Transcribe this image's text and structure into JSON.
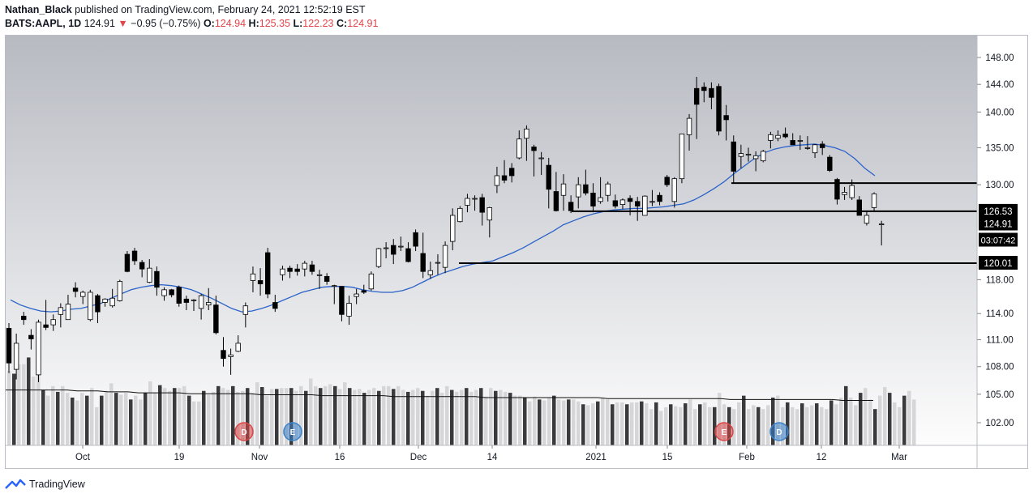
{
  "header": {
    "author": "Nathan_Black",
    "published_text": "published on TradingView.com, February 24, 2021 12:52:19 EST",
    "symbol": "BATS:AAPL, 1D",
    "last": "124.91",
    "arrow": "▼",
    "change": "−0.95 (−0.75%)",
    "o_label": "O:",
    "o_value": "124.94",
    "h_label": "H:",
    "h_value": "125.35",
    "l_label": "L:",
    "l_value": "122.23",
    "c_label": "C:",
    "c_value": "124.91"
  },
  "footer": {
    "brand": "TradingView"
  },
  "colors": {
    "bull_body": "#ffffff",
    "bear_body": "#000000",
    "wick": "#000000",
    "ma": "#2962c9",
    "vol_up": "#d6d6d8",
    "vol_down": "#3a3a3c",
    "bg_top": "#b8bac2",
    "bg_bottom": "#fdfdfd",
    "marker_red": "#d94747",
    "marker_blue": "#3b82c8"
  },
  "chart_data": {
    "type": "candlestick",
    "symbol": "BATS:AAPL",
    "interval": "1D",
    "price_axis": {
      "ticks": [
        "148.00",
        "144.00",
        "140.00",
        "135.00",
        "130.00",
        "126.53",
        "124.91",
        "120.01",
        "118.00",
        "114.00",
        "111.00",
        "108.00",
        "105.00",
        "102.00"
      ],
      "log_scale": true
    },
    "x_labels": [
      "Oct",
      "19",
      "Nov",
      "16",
      "Dec",
      "14",
      "2021",
      "15",
      "Feb",
      "12",
      "Mar"
    ],
    "horizontal_levels": [
      {
        "label": "130.21",
        "price": 130.21
      },
      {
        "label": "126.53",
        "price": 126.53
      },
      {
        "label": "120.01",
        "price": 120.01
      }
    ],
    "last_price_label": "124.91",
    "countdown_label": "03:07:42",
    "moving_average": [
      115.6,
      115.0,
      114.6,
      114.3,
      114.2,
      114.3,
      114.5,
      114.6,
      114.9,
      115.2,
      115.8,
      116.3,
      116.8,
      117.1,
      117.3,
      117.4,
      117.3,
      117.1,
      116.8,
      116.3,
      115.8,
      115.2,
      114.6,
      114.2,
      114.3,
      114.6,
      115.0,
      115.5,
      116.0,
      116.5,
      116.8,
      117.1,
      117.2,
      117.2,
      117.1,
      116.8,
      116.6,
      116.5,
      116.5,
      116.7,
      117.1,
      117.7,
      118.3,
      118.8,
      119.2,
      119.6,
      119.9,
      120.1,
      120.3,
      120.8,
      121.3,
      121.9,
      122.6,
      123.3,
      124.0,
      124.8,
      125.3,
      125.8,
      126.2,
      126.5,
      126.7,
      126.8,
      126.9,
      126.9,
      127.0,
      127.1,
      127.3,
      127.5,
      128.0,
      128.7,
      129.5,
      130.4,
      131.5,
      132.5,
      133.5,
      134.3,
      134.8,
      135.1,
      135.3,
      135.4,
      135.5,
      135.3,
      135.0,
      134.5,
      133.5,
      132.2,
      131.2
    ],
    "candles": [
      [
        112.3,
        108.4,
        112.9,
        107.3
      ],
      [
        107.7,
        110.6,
        111.7,
        106.6
      ],
      [
        113.7,
        113.3,
        114.2,
        112.7
      ],
      [
        111.5,
        111.1,
        112.2,
        109.9
      ],
      [
        107.1,
        113.0,
        113.3,
        106.3
      ],
      [
        112.7,
        112.4,
        115.6,
        112.1
      ],
      [
        112.7,
        113.3,
        113.9,
        112.0
      ],
      [
        113.9,
        114.7,
        115.2,
        112.4
      ],
      [
        113.3,
        115.1,
        116.2,
        113.3
      ],
      [
        117.0,
        116.6,
        117.7,
        115.9
      ],
      [
        116.0,
        116.5,
        116.7,
        115.1
      ],
      [
        113.3,
        116.5,
        116.8,
        113.1
      ],
      [
        116.1,
        114.2,
        116.3,
        112.9
      ],
      [
        115.3,
        115.7,
        115.8,
        114.8
      ],
      [
        114.9,
        115.8,
        116.9,
        114.7
      ],
      [
        115.5,
        117.8,
        118.0,
        115.4
      ],
      [
        121.1,
        119.0,
        121.5,
        118.9
      ],
      [
        121.5,
        120.3,
        121.9,
        119.8
      ],
      [
        120.1,
        119.3,
        120.4,
        118.3
      ],
      [
        117.7,
        119.4,
        120.5,
        117.6
      ],
      [
        119.0,
        117.1,
        119.6,
        116.1
      ],
      [
        116.1,
        116.8,
        117.1,
        115.5
      ],
      [
        116.8,
        116.2,
        116.9,
        115.9
      ],
      [
        117.1,
        115.2,
        117.3,
        114.8
      ],
      [
        115.7,
        115.3,
        116.1,
        114.4
      ],
      [
        115.5,
        115.6,
        115.7,
        114.3
      ],
      [
        114.6,
        116.1,
        116.3,
        113.3
      ],
      [
        115.0,
        115.3,
        117.0,
        114.4
      ],
      [
        115.0,
        111.8,
        116.1,
        111.6
      ],
      [
        109.8,
        108.9,
        111.3,
        108.0
      ],
      [
        109.1,
        109.3,
        110.0,
        107.1
      ],
      [
        109.7,
        110.6,
        111.5,
        109.6
      ],
      [
        113.9,
        114.9,
        115.3,
        112.4
      ],
      [
        117.9,
        118.7,
        119.6,
        116.5
      ],
      [
        117.9,
        117.5,
        119.4,
        116.1
      ],
      [
        121.3,
        116.3,
        121.9,
        115.8
      ],
      [
        115.3,
        114.6,
        116.2,
        114.2
      ],
      [
        118.6,
        119.3,
        119.7,
        117.9
      ],
      [
        119.4,
        119.0,
        119.7,
        118.2
      ],
      [
        119.3,
        119.0,
        119.9,
        118.5
      ],
      [
        119.3,
        120.0,
        120.3,
        118.4
      ],
      [
        119.8,
        119.0,
        120.3,
        118.6
      ],
      [
        118.5,
        118.6,
        119.2,
        116.9
      ],
      [
        118.4,
        117.8,
        118.8,
        117.4
      ],
      [
        117.3,
        117.3,
        117.4,
        115.1
      ],
      [
        117.2,
        113.9,
        117.2,
        113.1
      ],
      [
        113.7,
        115.2,
        116.1,
        112.7
      ],
      [
        116.0,
        116.3,
        116.9,
        115.1
      ],
      [
        116.7,
        116.5,
        117.4,
        116.3
      ],
      [
        116.9,
        118.7,
        119.0,
        116.7
      ],
      [
        119.6,
        121.8,
        121.9,
        119.4
      ],
      [
        121.8,
        121.9,
        122.6,
        120.6
      ],
      [
        122.2,
        121.1,
        123.0,
        119.9
      ],
      [
        122.1,
        122.1,
        123.3,
        121.5
      ],
      [
        121.8,
        120.2,
        122.6,
        120.1
      ],
      [
        123.8,
        122.1,
        124.2,
        121.5
      ],
      [
        121.2,
        119.0,
        123.8,
        118.2
      ],
      [
        118.6,
        119.1,
        120.2,
        118.1
      ],
      [
        120.0,
        120.1,
        121.1,
        118.6
      ],
      [
        119.5,
        122.2,
        122.7,
        118.8
      ],
      [
        122.7,
        126.0,
        126.9,
        121.6
      ],
      [
        125.2,
        126.9,
        127.2,
        125.1
      ],
      [
        127.3,
        128.2,
        128.8,
        126.4
      ],
      [
        128.2,
        128.2,
        128.6,
        126.6
      ],
      [
        128.3,
        126.4,
        128.8,
        124.7
      ],
      [
        125.4,
        127.0,
        127.1,
        123.2
      ],
      [
        129.9,
        131.2,
        132.4,
        128.9
      ],
      [
        131.2,
        130.6,
        133.3,
        130.2
      ],
      [
        132.2,
        131.2,
        132.9,
        130.3
      ],
      [
        133.6,
        136.2,
        137.4,
        133.4
      ],
      [
        136.3,
        137.6,
        138.1,
        133.2
      ],
      [
        135.1,
        134.6,
        135.4,
        131.1
      ],
      [
        133.6,
        133.6,
        134.4,
        131.3
      ],
      [
        132.6,
        129.4,
        133.6,
        126.9
      ],
      [
        129.1,
        126.6,
        131.7,
        126.5
      ],
      [
        128.6,
        130.1,
        131.4,
        126.6
      ],
      [
        127.7,
        126.6,
        128.6,
        126.3
      ],
      [
        128.4,
        130.0,
        131.0,
        126.9
      ],
      [
        130.0,
        128.9,
        132.0,
        128.6
      ],
      [
        128.9,
        127.2,
        130.2,
        126.4
      ],
      [
        127.8,
        128.3,
        131.0,
        127.5
      ],
      [
        128.6,
        130.1,
        130.4,
        127.8
      ],
      [
        127.9,
        127.2,
        128.7,
        126.9
      ],
      [
        127.4,
        128.0,
        128.2,
        126.8
      ],
      [
        128.2,
        127.8,
        128.6,
        126.0
      ],
      [
        127.8,
        127.2,
        128.4,
        125.3
      ],
      [
        126.0,
        128.5,
        128.6,
        126.0
      ],
      [
        127.8,
        127.8,
        129.3,
        127.2
      ],
      [
        128.6,
        127.8,
        129.0,
        127.3
      ],
      [
        131.0,
        130.0,
        131.3,
        129.7
      ],
      [
        127.8,
        130.8,
        131.0,
        127.0
      ],
      [
        130.8,
        136.9,
        136.9,
        130.2
      ],
      [
        136.8,
        139.1,
        139.7,
        134.6
      ],
      [
        143.4,
        141.1,
        145.1,
        136.2
      ],
      [
        143.6,
        143.1,
        144.3,
        141.4
      ],
      [
        143.4,
        142.1,
        144.3,
        140.4
      ],
      [
        143.7,
        137.3,
        144.1,
        136.7
      ],
      [
        139.5,
        138.9,
        141.0,
        136.0
      ],
      [
        135.8,
        131.8,
        136.7,
        130.2
      ],
      [
        133.8,
        134.2,
        135.4,
        132.2
      ],
      [
        134.1,
        134.1,
        135.0,
        133.1
      ],
      [
        133.5,
        133.9,
        134.5,
        131.8
      ],
      [
        133.2,
        134.5,
        134.7,
        133.0
      ],
      [
        136.0,
        136.8,
        137.2,
        134.9
      ],
      [
        136.3,
        136.7,
        137.4,
        135.9
      ],
      [
        136.9,
        136.5,
        137.8,
        136.3
      ],
      [
        136.0,
        135.4,
        137.0,
        135.4
      ],
      [
        136.0,
        136.0,
        136.7,
        134.7
      ],
      [
        135.0,
        135.0,
        136.6,
        134.7
      ],
      [
        134.3,
        135.4,
        135.5,
        133.6
      ],
      [
        135.5,
        135.0,
        135.9,
        134.0
      ],
      [
        133.7,
        131.9,
        134.0,
        131.7
      ],
      [
        130.7,
        128.1,
        130.9,
        127.4
      ],
      [
        128.7,
        129.0,
        129.7,
        128.0
      ],
      [
        128.3,
        129.9,
        130.7,
        128.0
      ],
      [
        128.0,
        126.0,
        128.5,
        126.0
      ],
      [
        125.0,
        126.0,
        126.5,
        124.7
      ],
      [
        127.0,
        128.8,
        129.0,
        126.5
      ],
      [
        124.9,
        124.9,
        125.3,
        122.2
      ]
    ],
    "volume": [
      0.78,
      0.75,
      0.85,
      0.85,
      0.92,
      0.72,
      0.74,
      0.58,
      0.52,
      0.62,
      0.56,
      0.62,
      0.55,
      0.5,
      0.47,
      0.55,
      0.52,
      0.6,
      0.4,
      0.52,
      0.57,
      0.65,
      0.55,
      0.53,
      0.55,
      0.48,
      0.52,
      0.48,
      0.55,
      0.67,
      0.55,
      0.63,
      0.6,
      0.57,
      0.6,
      0.6,
      0.62,
      0.52,
      0.46,
      0.46,
      0.57,
      0.53,
      0.56,
      0.62,
      0.6,
      0.58,
      0.62,
      0.56,
      0.57,
      0.6,
      0.55,
      0.66,
      0.61,
      0.52,
      0.59,
      0.59,
      0.6,
      0.6,
      0.6,
      0.57,
      0.62,
      0.57,
      0.7,
      0.62,
      0.6,
      0.62,
      0.64,
      0.62,
      0.59,
      0.66,
      0.6,
      0.58,
      0.59,
      0.55,
      0.58,
      0.6,
      0.57,
      0.62,
      0.62,
      0.59,
      0.62,
      0.58,
      0.56,
      0.58,
      0.6,
      0.57,
      0.52,
      0.57,
      0.6,
      0.55,
      0.62,
      0.58,
      0.56,
      0.58,
      0.6,
      0.56,
      0.58,
      0.6,
      0.51,
      0.6,
      0.57,
      0.58,
      0.56,
      0.55,
      0.52,
      0.52,
      0.5,
      0.46,
      0.51,
      0.48,
      0.47,
      0.5,
      0.52,
      0.48,
      0.47,
      0.48,
      0.48,
      0.46,
      0.43,
      0.42,
      0.44,
      0.46,
      0.5,
      0.48,
      0.43,
      0.45,
      0.45,
      0.43,
      0.45,
      0.45,
      0.46,
      0.44,
      0.38,
      0.45,
      0.36,
      0.4,
      0.43,
      0.41,
      0.4,
      0.44,
      0.48,
      0.38,
      0.43,
      0.45,
      0.4,
      0.4,
      0.55,
      0.43,
      0.4,
      0.38,
      0.45,
      0.52,
      0.38,
      0.42,
      0.4,
      0.38,
      0.42,
      0.5,
      0.52,
      0.4,
      0.45,
      0.4,
      0.38,
      0.44,
      0.4,
      0.42,
      0.44,
      0.4,
      0.38,
      0.47,
      0.43,
      0.5,
      0.62,
      0.5,
      0.42,
      0.55,
      0.6,
      0.48,
      0.38,
      0.52,
      0.61,
      0.55,
      0.45,
      0.4,
      0.52,
      0.57,
      0.48
    ],
    "volume_ma": [
      0.58,
      0.58,
      0.58,
      0.58,
      0.58,
      0.58,
      0.58,
      0.57,
      0.57,
      0.57,
      0.56,
      0.56,
      0.56,
      0.55,
      0.55,
      0.55,
      0.55,
      0.55,
      0.54,
      0.54,
      0.54,
      0.54,
      0.54,
      0.54,
      0.54,
      0.53,
      0.53,
      0.53,
      0.53,
      0.53,
      0.53,
      0.52,
      0.52,
      0.52,
      0.52,
      0.52,
      0.52,
      0.52,
      0.51,
      0.51,
      0.51,
      0.51,
      0.51,
      0.51,
      0.51,
      0.51,
      0.51,
      0.5,
      0.5,
      0.5,
      0.5,
      0.5,
      0.5,
      0.5,
      0.5,
      0.5,
      0.5,
      0.5,
      0.5,
      0.49,
      0.49,
      0.49,
      0.49,
      0.49,
      0.49,
      0.49,
      0.49,
      0.49,
      0.49,
      0.49,
      0.49,
      0.48,
      0.48,
      0.48,
      0.48,
      0.48,
      0.48,
      0.48,
      0.48,
      0.48,
      0.48,
      0.48,
      0.47,
      0.47,
      0.47,
      0.47
    ],
    "volume_markers": [
      {
        "letter": "D",
        "color": "red"
      },
      {
        "letter": "E",
        "color": "blue"
      },
      {
        "letter": "E",
        "color": "red"
      },
      {
        "letter": "D",
        "color": "blue"
      }
    ]
  }
}
